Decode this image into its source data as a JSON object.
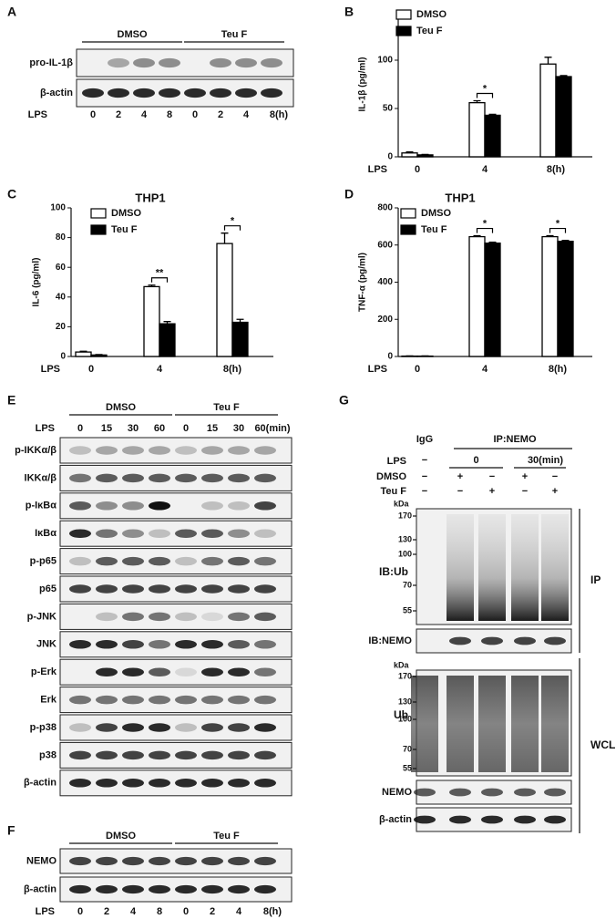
{
  "panels": {
    "A": {
      "letter": "A",
      "groups": [
        "DMSO",
        "Teu F"
      ],
      "rows": [
        "pro-IL-1β",
        "β-actin"
      ],
      "lps": "LPS",
      "lanes": [
        "0",
        "2",
        "4",
        "8",
        "0",
        "2",
        "4",
        "8(h)"
      ]
    },
    "E": {
      "letter": "E",
      "groups": [
        "DMSO",
        "Teu F"
      ],
      "lps": "LPS",
      "lanes": [
        "0",
        "15",
        "30",
        "60",
        "0",
        "15",
        "30",
        "60(min)"
      ],
      "rows": [
        "p-IKKα/β",
        "IKKα/β",
        "p-IκBα",
        "IκBα",
        "p-p65",
        "p65",
        "p-JNK",
        "JNK",
        "p-Erk",
        "Erk",
        "p-p38",
        "p38",
        "β-actin"
      ]
    },
    "F": {
      "letter": "F",
      "groups": [
        "DMSO",
        "Teu F"
      ],
      "rows": [
        "NEMO",
        "β-actin"
      ],
      "lps": "LPS",
      "lanes": [
        "0",
        "2",
        "4",
        "8",
        "0",
        "2",
        "4",
        "8(h)"
      ]
    },
    "G": {
      "letter": "G",
      "igg": "IgG",
      "ip": "IP:NEMO",
      "lps": {
        "label": "LPS",
        "values": [
          "−",
          "0",
          "30(min)"
        ]
      },
      "treatments": [
        {
          "label": "DMSO",
          "signs": [
            "−",
            "+",
            "−",
            "+",
            "−"
          ]
        },
        {
          "label": "Teu F",
          "signs": [
            "−",
            "−",
            "+",
            "−",
            "+"
          ]
        }
      ],
      "ip_section": {
        "label": "IP",
        "kda": "kDa",
        "markers": [
          "170",
          "130",
          "100",
          "70",
          "55"
        ],
        "blots": [
          "IB:Ub",
          "IB:NEMO"
        ]
      },
      "wcl_section": {
        "label": "WCL",
        "kda": "kDa",
        "markers": [
          "170",
          "130",
          "100",
          "70",
          "55"
        ],
        "blots": [
          "Ub",
          "NEMO",
          "β-actin"
        ]
      }
    }
  },
  "chart_data": [
    {
      "letter": "B",
      "type": "bar",
      "ylabel": "IL-1β (pg/ml)",
      "xlabel": "LPS",
      "categories": [
        "0",
        "4",
        "8(h)"
      ],
      "ylim": [
        0,
        150
      ],
      "yticks": [
        0,
        50,
        100
      ],
      "series": [
        {
          "name": "DMSO",
          "color": "#ffffff",
          "values": [
            4,
            56,
            96
          ],
          "errors": [
            1,
            2,
            7
          ]
        },
        {
          "name": "Teu F",
          "color": "#000000",
          "values": [
            2,
            43,
            83
          ],
          "errors": [
            0.5,
            1,
            1
          ]
        }
      ],
      "significance": [
        null,
        "*",
        null
      ]
    },
    {
      "letter": "C",
      "type": "bar",
      "title": "THP1",
      "ylabel": "IL-6 (pg/ml)",
      "xlabel": "LPS",
      "categories": [
        "0",
        "4",
        "8(h)"
      ],
      "ylim": [
        0,
        100
      ],
      "yticks": [
        0,
        20,
        40,
        60,
        80,
        100
      ],
      "series": [
        {
          "name": "DMSO",
          "color": "#ffffff",
          "values": [
            3,
            47,
            76
          ],
          "errors": [
            0.5,
            1,
            7
          ]
        },
        {
          "name": "Teu F",
          "color": "#000000",
          "values": [
            1,
            22,
            23
          ],
          "errors": [
            0.3,
            1.5,
            2
          ]
        }
      ],
      "significance": [
        null,
        "**",
        "*"
      ]
    },
    {
      "letter": "D",
      "type": "bar",
      "title": "THP1",
      "ylabel": "TNF-α (pg/ml)",
      "xlabel": "LPS",
      "categories": [
        "0",
        "4",
        "8(h)"
      ],
      "ylim": [
        0,
        800
      ],
      "yticks": [
        0,
        200,
        400,
        600,
        800
      ],
      "series": [
        {
          "name": "DMSO",
          "color": "#ffffff",
          "values": [
            2,
            645,
            645
          ],
          "errors": [
            1,
            5,
            5
          ]
        },
        {
          "name": "Teu F",
          "color": "#000000",
          "values": [
            2,
            610,
            620
          ],
          "errors": [
            1,
            5,
            5
          ]
        }
      ],
      "significance": [
        null,
        "*",
        "*"
      ]
    }
  ]
}
